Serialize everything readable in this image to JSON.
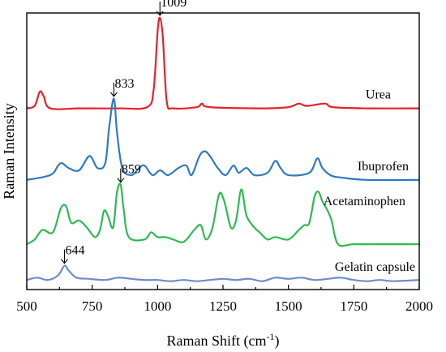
{
  "chart_data": {
    "type": "line",
    "title": "",
    "xlabel_main": "Raman Shift (cm",
    "xlabel_sup": "-1",
    "xlabel_end": ")",
    "ylabel": "Raman Intensity",
    "xlim": [
      500,
      2000
    ],
    "xticks": [
      500,
      750,
      1000,
      1250,
      1500,
      1750,
      2000
    ],
    "grid": false,
    "y_ticks_labeled": false,
    "series": [
      {
        "name": "Urea",
        "color": "#e8202a",
        "offset": 0.73,
        "points": [
          [
            500,
            0.0
          ],
          [
            530,
            0.01
          ],
          [
            550,
            0.07
          ],
          [
            565,
            0.05
          ],
          [
            590,
            0.0
          ],
          [
            700,
            0.0
          ],
          [
            850,
            0.0
          ],
          [
            960,
            0.005
          ],
          [
            985,
            0.08
          ],
          [
            1000,
            0.32
          ],
          [
            1009,
            0.38
          ],
          [
            1020,
            0.3
          ],
          [
            1035,
            0.03
          ],
          [
            1060,
            0.0
          ],
          [
            1150,
            0.005
          ],
          [
            1170,
            0.02
          ],
          [
            1200,
            0.005
          ],
          [
            1400,
            0.0
          ],
          [
            1500,
            0.005
          ],
          [
            1540,
            0.02
          ],
          [
            1570,
            0.01
          ],
          [
            1640,
            0.02
          ],
          [
            1670,
            0.005
          ],
          [
            1800,
            0.0
          ],
          [
            2000,
            0.0
          ]
        ]
      },
      {
        "name": "Ibuprofen",
        "color": "#2e7bbf",
        "offset": 0.43,
        "points": [
          [
            500,
            0.0
          ],
          [
            590,
            0.02
          ],
          [
            620,
            0.06
          ],
          [
            635,
            0.07
          ],
          [
            660,
            0.05
          ],
          [
            700,
            0.04
          ],
          [
            740,
            0.1
          ],
          [
            770,
            0.05
          ],
          [
            800,
            0.07
          ],
          [
            815,
            0.22
          ],
          [
            833,
            0.34
          ],
          [
            845,
            0.2
          ],
          [
            865,
            0.05
          ],
          [
            900,
            0.02
          ],
          [
            930,
            0.05
          ],
          [
            950,
            0.06
          ],
          [
            980,
            0.02
          ],
          [
            1010,
            0.04
          ],
          [
            1040,
            0.02
          ],
          [
            1080,
            0.05
          ],
          [
            1110,
            0.06
          ],
          [
            1130,
            0.02
          ],
          [
            1160,
            0.1
          ],
          [
            1180,
            0.12
          ],
          [
            1200,
            0.1
          ],
          [
            1230,
            0.05
          ],
          [
            1260,
            0.02
          ],
          [
            1290,
            0.06
          ],
          [
            1310,
            0.03
          ],
          [
            1340,
            0.05
          ],
          [
            1370,
            0.02
          ],
          [
            1420,
            0.03
          ],
          [
            1450,
            0.08
          ],
          [
            1470,
            0.05
          ],
          [
            1500,
            0.02
          ],
          [
            1580,
            0.03
          ],
          [
            1610,
            0.09
          ],
          [
            1630,
            0.05
          ],
          [
            1660,
            0.02
          ],
          [
            1700,
            0.01
          ],
          [
            1800,
            0.0
          ],
          [
            2000,
            0.0
          ]
        ]
      },
      {
        "name": "Acetaminophen",
        "color": "#2cba50",
        "offset": 0.16,
        "points": [
          [
            500,
            0.0
          ],
          [
            530,
            0.02
          ],
          [
            560,
            0.06
          ],
          [
            600,
            0.05
          ],
          [
            630,
            0.15
          ],
          [
            650,
            0.16
          ],
          [
            670,
            0.09
          ],
          [
            700,
            0.1
          ],
          [
            730,
            0.07
          ],
          [
            760,
            0.03
          ],
          [
            780,
            0.06
          ],
          [
            795,
            0.14
          ],
          [
            810,
            0.12
          ],
          [
            830,
            0.07
          ],
          [
            845,
            0.22
          ],
          [
            859,
            0.25
          ],
          [
            870,
            0.15
          ],
          [
            890,
            0.03
          ],
          [
            950,
            0.02
          ],
          [
            975,
            0.05
          ],
          [
            1000,
            0.03
          ],
          [
            1030,
            0.03
          ],
          [
            1060,
            0.02
          ],
          [
            1100,
            0.01
          ],
          [
            1140,
            0.06
          ],
          [
            1165,
            0.08
          ],
          [
            1185,
            0.02
          ],
          [
            1210,
            0.07
          ],
          [
            1235,
            0.21
          ],
          [
            1255,
            0.18
          ],
          [
            1280,
            0.07
          ],
          [
            1300,
            0.1
          ],
          [
            1320,
            0.23
          ],
          [
            1340,
            0.12
          ],
          [
            1370,
            0.07
          ],
          [
            1390,
            0.05
          ],
          [
            1420,
            0.02
          ],
          [
            1450,
            0.03
          ],
          [
            1500,
            0.02
          ],
          [
            1540,
            0.06
          ],
          [
            1560,
            0.08
          ],
          [
            1580,
            0.09
          ],
          [
            1600,
            0.2
          ],
          [
            1615,
            0.22
          ],
          [
            1630,
            0.18
          ],
          [
            1650,
            0.14
          ],
          [
            1665,
            0.1
          ],
          [
            1690,
            0.0
          ],
          [
            1750,
            0.0
          ],
          [
            1850,
            0.0
          ],
          [
            2000,
            0.0
          ]
        ]
      },
      {
        "name": "Gelatin capsule",
        "color": "#6a8fc8",
        "offset": 0.0,
        "points": [
          [
            500,
            0.01
          ],
          [
            540,
            0.02
          ],
          [
            580,
            0.01
          ],
          [
            620,
            0.03
          ],
          [
            644,
            0.07
          ],
          [
            660,
            0.05
          ],
          [
            690,
            0.02
          ],
          [
            740,
            0.015
          ],
          [
            800,
            0.01
          ],
          [
            850,
            0.02
          ],
          [
            900,
            0.015
          ],
          [
            950,
            0.01
          ],
          [
            1000,
            0.01
          ],
          [
            1050,
            0.005
          ],
          [
            1100,
            0.01
          ],
          [
            1150,
            0.005
          ],
          [
            1200,
            0.01
          ],
          [
            1250,
            0.015
          ],
          [
            1300,
            0.01
          ],
          [
            1350,
            0.015
          ],
          [
            1400,
            0.005
          ],
          [
            1450,
            0.02
          ],
          [
            1500,
            0.015
          ],
          [
            1550,
            0.02
          ],
          [
            1600,
            0.01
          ],
          [
            1650,
            0.015
          ],
          [
            1700,
            0.02
          ],
          [
            1750,
            0.01
          ],
          [
            1800,
            0.005
          ],
          [
            1850,
            0.01
          ],
          [
            1900,
            0.005
          ],
          [
            2000,
            0.01
          ]
        ]
      }
    ],
    "annotations": [
      {
        "text": "1009",
        "x": 1009,
        "series": "Urea"
      },
      {
        "text": "833",
        "x": 833,
        "series": "Ibuprofen"
      },
      {
        "text": "859",
        "x": 859,
        "series": "Acetaminophen"
      },
      {
        "text": "644",
        "x": 644,
        "series": "Gelatin capsule"
      }
    ]
  }
}
